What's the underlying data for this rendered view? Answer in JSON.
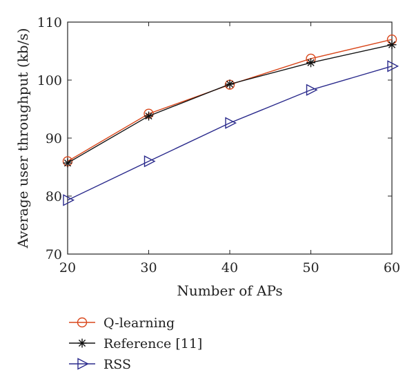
{
  "chart_data": {
    "type": "line",
    "xlabel": "Number of APs",
    "ylabel": "Average user throughput (kb/s)",
    "xlim": [
      20,
      60
    ],
    "ylim": [
      70,
      110
    ],
    "xticks": [
      20,
      30,
      40,
      50,
      60
    ],
    "yticks": [
      70,
      80,
      90,
      100,
      110
    ],
    "grid": false,
    "legend_position": "below-left",
    "series": [
      {
        "name": "Q-learning",
        "marker": "circle",
        "color": "#d9461a",
        "x": [
          20,
          30,
          40,
          50,
          60
        ],
        "y": [
          86.0,
          94.2,
          99.2,
          103.7,
          107.0
        ]
      },
      {
        "name": "Reference [11]",
        "marker": "asterisk",
        "color": "#111111",
        "x": [
          20,
          30,
          40,
          50,
          60
        ],
        "y": [
          85.7,
          93.8,
          99.3,
          103.0,
          106.1
        ]
      },
      {
        "name": "RSS",
        "marker": "triangle-right",
        "color": "#2a2a8c",
        "x": [
          20,
          30,
          40,
          50,
          60
        ],
        "y": [
          79.3,
          86.0,
          92.6,
          98.3,
          102.4
        ]
      }
    ]
  }
}
